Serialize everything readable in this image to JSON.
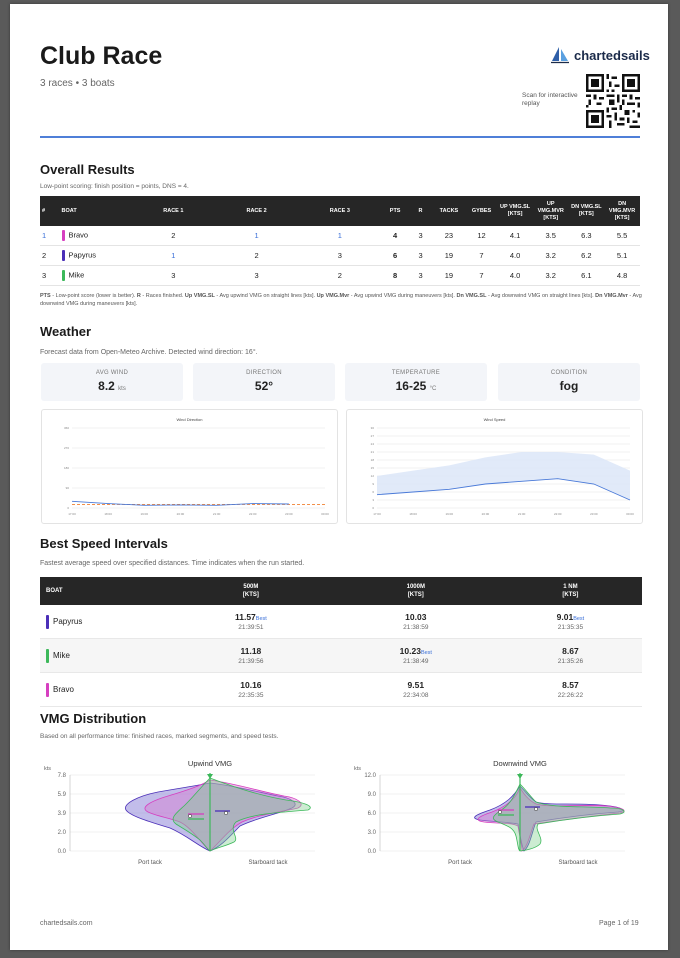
{
  "header": {
    "title": "Club Race",
    "subtitle": "3 races • 3 boats",
    "brand": "chartedsails",
    "scan_text": "Scan for interactive replay"
  },
  "results": {
    "heading": "Overall Results",
    "note": "Low-point scoring: finish position = points, DNS = 4.",
    "columns": [
      "#",
      "BOAT",
      "RACE 1",
      "RACE 2",
      "RACE 3",
      "PTS",
      "R",
      "TACKS",
      "GYBES",
      "UP VMG.SL [KTS]",
      "UP VMG.MVR [KTS]",
      "DN VMG.SL [KTS]",
      "DN VMG.MVR [KTS]"
    ],
    "rows": [
      {
        "rank": "1",
        "boat": "Bravo",
        "color": "#d63fc0",
        "r1": "2",
        "r2": "1",
        "r3": "1",
        "pts": "4",
        "r": "3",
        "tacks": "23",
        "gybes": "12",
        "up_sl": "4.1",
        "up_mvr": "3.5",
        "dn_sl": "6.3",
        "dn_mvr": "5.5"
      },
      {
        "rank": "2",
        "boat": "Papyrus",
        "color": "#4b2fb8",
        "r1": "1",
        "r2": "2",
        "r3": "3",
        "pts": "6",
        "r": "3",
        "tacks": "19",
        "gybes": "7",
        "up_sl": "4.0",
        "up_mvr": "3.2",
        "dn_sl": "6.2",
        "dn_mvr": "5.1"
      },
      {
        "rank": "3",
        "boat": "Mike",
        "color": "#3cb85a",
        "r1": "3",
        "r2": "3",
        "r3": "2",
        "pts": "8",
        "r": "3",
        "tacks": "19",
        "gybes": "7",
        "up_sl": "4.0",
        "up_mvr": "3.2",
        "dn_sl": "6.1",
        "dn_mvr": "4.8"
      }
    ],
    "legend": [
      {
        "term": "PTS",
        "desc": " - Low-point score (lower is better). "
      },
      {
        "term": "R",
        "desc": " - Races finished. "
      },
      {
        "term": "Up VMG.SL",
        "desc": " - Avg upwind VMG on straight lines [kts]. "
      },
      {
        "term": "Up VMG.Mvr",
        "desc": " - Avg upwind VMG during maneuvers [kts]. "
      },
      {
        "term": "Dn VMG.SL",
        "desc": " - Avg downwind VMG on straight lines [kts]. "
      },
      {
        "term": "Dn VMG.Mvr",
        "desc": " - Avg downwind VMG during maneuvers [kts]."
      }
    ]
  },
  "weather": {
    "heading": "Weather",
    "note": "Forecast data from Open-Meteo Archive. Detected wind direction: 16°.",
    "cards": [
      {
        "label": "AVG WIND",
        "value": "8.2",
        "unit": "kts"
      },
      {
        "label": "DIRECTION",
        "value": "52°",
        "unit": ""
      },
      {
        "label": "TEMPERATURE",
        "value": "16-25",
        "unit": "°C"
      },
      {
        "label": "CONDITION",
        "value": "fog",
        "unit": ""
      }
    ]
  },
  "chart_data": [
    {
      "type": "line",
      "title": "Wind Direction",
      "x": [
        "17:00",
        "18:00",
        "19:00",
        "20:00",
        "21:00",
        "22:00",
        "23:00",
        "00:00"
      ],
      "series": [
        {
          "values": [
            30,
            20,
            12,
            14,
            12,
            20,
            18,
            null
          ],
          "color": "#4a7ad8"
        }
      ],
      "reference_line": {
        "value": 16,
        "color": "#f08030",
        "style": "dashed"
      },
      "ylim": [
        0,
        360
      ],
      "yticks": [
        0,
        90,
        180,
        270,
        360
      ],
      "grid": true
    },
    {
      "type": "area",
      "title": "Wind Speed",
      "x": [
        "17:00",
        "18:00",
        "19:00",
        "20:00",
        "21:00",
        "22:00",
        "23:00",
        "00:00"
      ],
      "series": [
        {
          "values": [
            5,
            6,
            7,
            9,
            10,
            11,
            9,
            3
          ],
          "color": "#4a7ad8"
        }
      ],
      "band_upper": [
        12,
        14,
        16,
        19,
        21,
        21,
        20,
        14
      ],
      "band_lower": [
        5,
        6,
        7,
        9,
        10,
        11,
        9,
        3
      ],
      "ylim": [
        0,
        30
      ],
      "yticks": [
        0,
        3,
        6,
        9,
        12,
        15,
        18,
        21,
        24,
        27,
        30
      ],
      "grid": true
    },
    {
      "type": "area",
      "title": "Upwind VMG",
      "ylabel": "kts",
      "yticks": [
        "0.0",
        "2.0",
        "3.9",
        "5.9",
        "7.8"
      ],
      "ylim": [
        0,
        7.8
      ],
      "xlabels": [
        "Port tack",
        "Starboard tack"
      ],
      "series": [
        {
          "name": "Papyrus",
          "color": "#4b2fb8"
        },
        {
          "name": "Bravo",
          "color": "#d63fc0"
        },
        {
          "name": "Mike",
          "color": "#3cb85a"
        }
      ]
    },
    {
      "type": "area",
      "title": "Downwind VMG",
      "ylabel": "kts",
      "yticks": [
        "0.0",
        "3.0",
        "6.0",
        "9.0",
        "12.0"
      ],
      "ylim": [
        0,
        12
      ],
      "xlabels": [
        "Port tack",
        "Starboard tack"
      ],
      "series": [
        {
          "name": "Papyrus",
          "color": "#4b2fb8"
        },
        {
          "name": "Bravo",
          "color": "#d63fc0"
        },
        {
          "name": "Mike",
          "color": "#3cb85a"
        }
      ]
    }
  ],
  "speed": {
    "heading": "Best Speed Intervals",
    "note": "Fastest average speed over specified distances. Time indicates when the run started.",
    "col_boat": "BOAT",
    "cols": [
      {
        "name": "500M",
        "unit": "[KTS]"
      },
      {
        "name": "1000M",
        "unit": "[KTS]"
      },
      {
        "name": "1 NM",
        "unit": "[KTS]"
      }
    ],
    "best_label": "Best",
    "rows": [
      {
        "boat": "Papyrus",
        "color": "#4b2fb8",
        "c1": "11.57",
        "t1": "21:39:51",
        "b1": true,
        "c2": "10.03",
        "t2": "21:38:59",
        "b2": false,
        "c3": "9.01",
        "t3": "21:35:35",
        "b3": true
      },
      {
        "boat": "Mike",
        "color": "#3cb85a",
        "c1": "11.18",
        "t1": "21:39:56",
        "b1": false,
        "c2": "10.23",
        "t2": "21:38:49",
        "b2": true,
        "c3": "8.67",
        "t3": "21:35:26",
        "b3": false
      },
      {
        "boat": "Bravo",
        "color": "#d63fc0",
        "c1": "10.16",
        "t1": "22:35:35",
        "b1": false,
        "c2": "9.51",
        "t2": "22:34:08",
        "b2": false,
        "c3": "8.57",
        "t3": "22:26:22",
        "b3": false
      }
    ]
  },
  "vmg": {
    "heading": "VMG Distribution",
    "note": "Based on all performance time: finished races, marked segments, and speed tests."
  },
  "footer": {
    "site": "chartedsails.com",
    "page": "Page 1 of 19"
  }
}
